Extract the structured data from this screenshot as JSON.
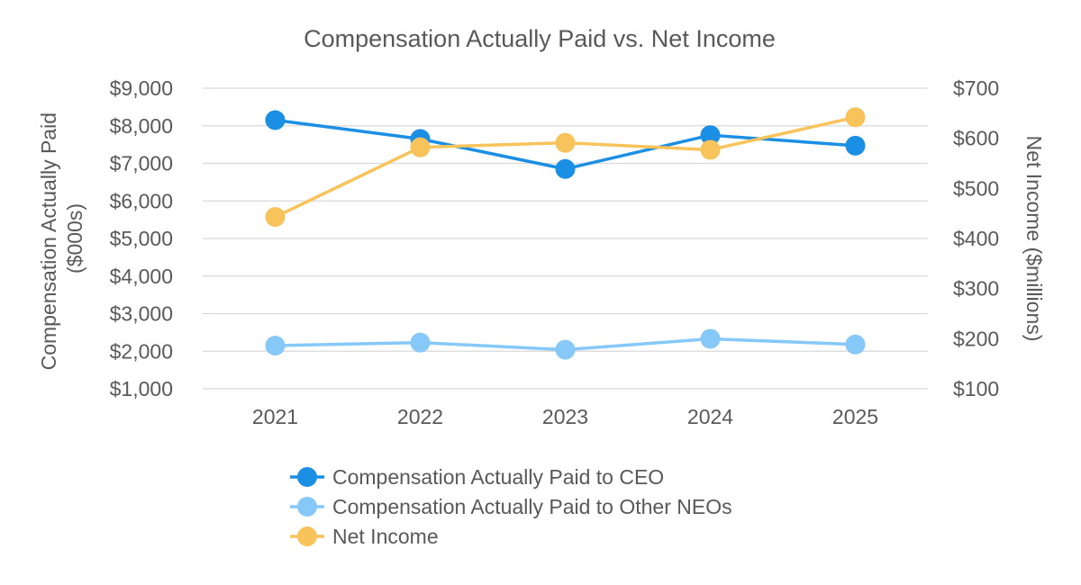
{
  "chart_data": {
    "type": "line",
    "title": "Compensation Actually Paid vs. Net Income",
    "categories": [
      "2021",
      "2022",
      "2023",
      "2024",
      "2025"
    ],
    "y_left": {
      "label_lines": [
        "Compensation Actually Paid",
        "($000s)"
      ],
      "ylim": [
        1000,
        9000
      ],
      "ticks": [
        1000,
        2000,
        3000,
        4000,
        5000,
        6000,
        7000,
        8000,
        9000
      ],
      "tick_labels": [
        "$1,000",
        "$2,000",
        "$3,000",
        "$4,000",
        "$5,000",
        "$6,000",
        "$7,000",
        "$8,000",
        "$9,000"
      ]
    },
    "y_right": {
      "label": "Net Income ($millions)",
      "ylim": [
        100,
        700
      ],
      "ticks": [
        100,
        200,
        300,
        400,
        500,
        600,
        700
      ],
      "tick_labels": [
        "$100",
        "$200",
        "$300",
        "$400",
        "$500",
        "$600",
        "$700"
      ]
    },
    "grid": true,
    "legend_position": "bottom",
    "series": [
      {
        "name": "Compensation Actually Paid to CEO",
        "axis": "left",
        "color": "#1a8fe3",
        "values": [
          8150,
          7650,
          6850,
          7750,
          7470
        ]
      },
      {
        "name": "Compensation Actually Paid to Other NEOs",
        "axis": "left",
        "color": "#86c8f8",
        "values": [
          2150,
          2230,
          2040,
          2330,
          2180
        ]
      },
      {
        "name": "Net Income",
        "axis": "right",
        "color": "#f7c35a",
        "values": [
          443,
          582,
          591,
          577,
          642
        ]
      }
    ]
  }
}
